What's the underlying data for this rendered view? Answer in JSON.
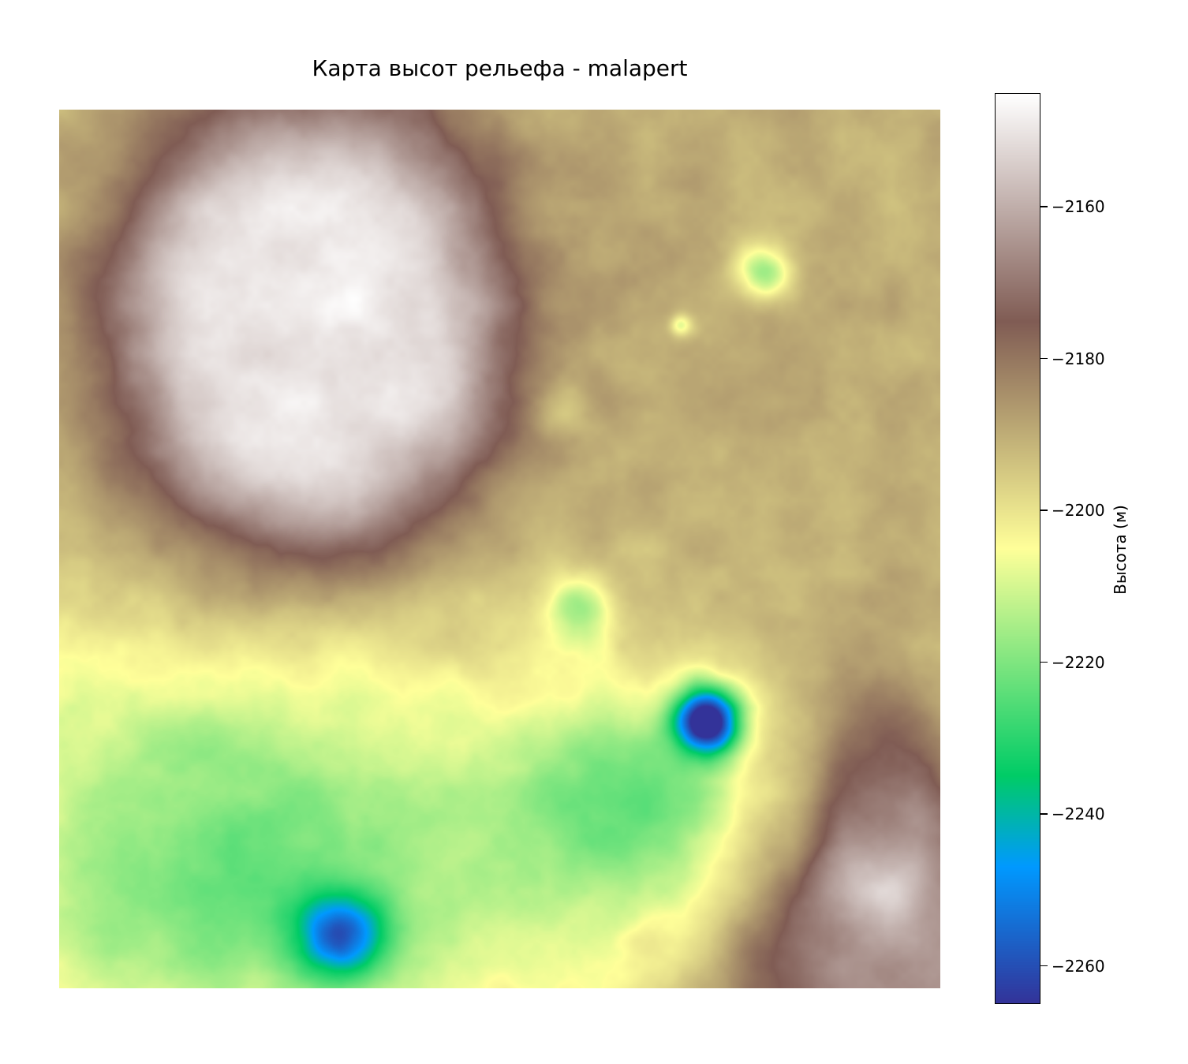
{
  "chart_data": {
    "type": "heatmap",
    "title": "Карта высот рельефа - malapert",
    "colorbar": {
      "label": "Высота (м)",
      "colormap": "terrain",
      "vmin": -2265,
      "vmax": -2145,
      "ticks": [
        {
          "value": -2160,
          "label": "−2160"
        },
        {
          "value": -2180,
          "label": "−2180"
        },
        {
          "value": -2200,
          "label": "−2200"
        },
        {
          "value": -2220,
          "label": "−2220"
        },
        {
          "value": -2240,
          "label": "−2240"
        },
        {
          "value": -2260,
          "label": "−2260"
        }
      ]
    },
    "axes_visible": false,
    "grid": false,
    "features": [
      {
        "kind": "plateau",
        "cx": 0.28,
        "cy": 0.25,
        "rx": 0.21,
        "ry": 0.26,
        "peak": -2148
      },
      {
        "kind": "plateau",
        "cx": 0.95,
        "cy": 1.0,
        "rx": 0.18,
        "ry": 0.2,
        "peak": -2165
      },
      {
        "kind": "ridge",
        "cx": 0.93,
        "cy": 0.8,
        "rx": 0.07,
        "ry": 0.14,
        "peak": -2178
      },
      {
        "kind": "lowland",
        "cx": 0.22,
        "cy": 0.85,
        "rx": 0.42,
        "ry": 0.3,
        "depth": -2222
      },
      {
        "kind": "lowland",
        "cx": 0.66,
        "cy": 0.8,
        "rx": 0.15,
        "ry": 0.15,
        "depth": -2215
      },
      {
        "kind": "pit",
        "cx": 0.735,
        "cy": 0.695,
        "r": 0.035,
        "depth": -2265
      },
      {
        "kind": "pit",
        "cx": 0.32,
        "cy": 0.94,
        "r": 0.05,
        "depth": -2232
      },
      {
        "kind": "crater",
        "cx": 0.8,
        "cy": 0.185,
        "r": 0.03,
        "depth": -2215
      },
      {
        "kind": "crater",
        "cx": 0.705,
        "cy": 0.245,
        "r": 0.012,
        "depth": -2208
      },
      {
        "kind": "crater",
        "cx": 0.575,
        "cy": 0.34,
        "r": 0.03,
        "depth": -2199
      },
      {
        "kind": "crater",
        "cx": 0.59,
        "cy": 0.565,
        "r": 0.035,
        "depth": -2212
      }
    ]
  }
}
